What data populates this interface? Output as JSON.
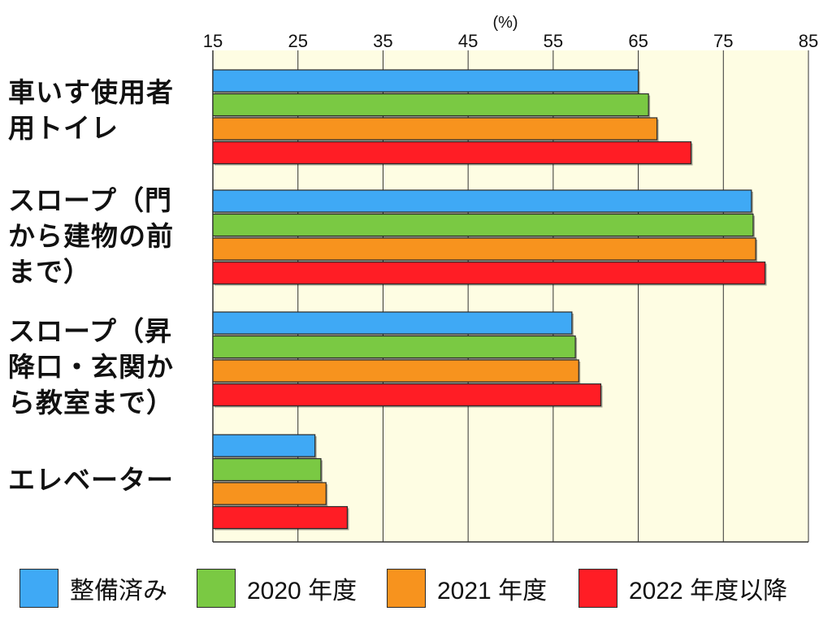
{
  "chart_data": {
    "type": "bar",
    "orientation": "horizontal",
    "unit": "(%)",
    "xlim": [
      15,
      85
    ],
    "xticks": [
      15,
      25,
      35,
      45,
      55,
      65,
      75,
      85
    ],
    "grid": true,
    "categories": [
      "車いす使用者用トイレ",
      "スロープ（門から建物の前まで）",
      "スロープ（昇降口・玄関から教室まで）",
      "エレベーター"
    ],
    "series": [
      {
        "name": "整備済み",
        "color": "#3fa9f5",
        "values": [
          65,
          78.3,
          57.2,
          27
        ]
      },
      {
        "name": "2020 年度",
        "color": "#7ac943",
        "values": [
          66.2,
          78.5,
          57.6,
          27.7
        ]
      },
      {
        "name": "2021 年度",
        "color": "#f7931e",
        "values": [
          67.2,
          78.8,
          58,
          28.3
        ]
      },
      {
        "name": "2022 年度以降",
        "color": "#ff1d25",
        "values": [
          71.2,
          79.9,
          60.6,
          30.8
        ]
      }
    ],
    "legend_position": "bottom"
  },
  "labels": {
    "cat0": [
      "車いす使用者",
      "用トイレ"
    ],
    "cat1": [
      "スロープ（門",
      "から建物の前",
      "まで）"
    ],
    "cat2": [
      "スロープ（昇",
      "降口・玄関か",
      "ら教室まで）"
    ],
    "cat3": [
      "エレベーター"
    ]
  }
}
